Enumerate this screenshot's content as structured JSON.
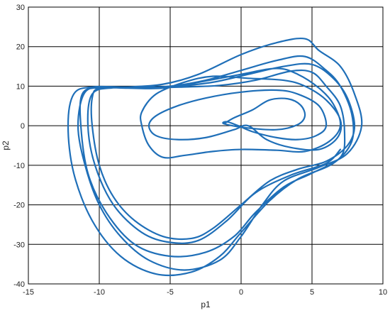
{
  "chart_data": {
    "type": "line",
    "title": "",
    "xlabel": "p1",
    "ylabel": "p2",
    "xlim": [
      -15,
      10
    ],
    "ylim": [
      -40,
      30
    ],
    "xticks": [
      -15,
      -10,
      -5,
      0,
      5,
      10
    ],
    "yticks": [
      -40,
      -30,
      -20,
      -10,
      0,
      10,
      20,
      30
    ],
    "grid": true,
    "line_color": "#1f6fb8",
    "series": [
      {
        "name": "",
        "points": [
          [
            -1.2,
            0.5
          ],
          [
            -0.5,
            2.0
          ],
          [
            0.8,
            4.0
          ],
          [
            2.0,
            6.5
          ],
          [
            3.3,
            6.8
          ],
          [
            4.2,
            5.2
          ],
          [
            4.5,
            2.5
          ],
          [
            4.0,
            0.3
          ],
          [
            2.5,
            -1.0
          ],
          [
            0.3,
            -0.5
          ],
          [
            -1.2,
            0.5
          ],
          [
            -1.0,
            1.0
          ],
          [
            -0.2,
            0.0
          ],
          [
            0.8,
            -1.5
          ],
          [
            2.5,
            -3.0
          ],
          [
            4.0,
            -3.5
          ],
          [
            5.3,
            -2.5
          ],
          [
            6.0,
            0.0
          ],
          [
            5.5,
            5.0
          ],
          [
            4.0,
            8.0
          ],
          [
            2.5,
            9.0
          ],
          [
            0.0,
            8.5
          ],
          [
            -2.5,
            7.0
          ],
          [
            -4.5,
            5.0
          ],
          [
            -6.0,
            2.5
          ],
          [
            -6.5,
            0.0
          ],
          [
            -6.0,
            -2.5
          ],
          [
            -4.5,
            -3.5
          ],
          [
            -2.5,
            -3.0
          ],
          [
            -0.5,
            -1.0
          ],
          [
            0.5,
            0.0
          ],
          [
            1.8,
            -3.5
          ],
          [
            3.5,
            -5.5
          ],
          [
            5.5,
            -6.0
          ],
          [
            6.8,
            -3.0
          ],
          [
            7.0,
            1.5
          ],
          [
            6.0,
            6.5
          ],
          [
            4.5,
            10.0
          ],
          [
            3.0,
            11.5
          ],
          [
            0.5,
            12.0
          ],
          [
            -2.0,
            12.5
          ],
          [
            -4.0,
            11.0
          ],
          [
            -6.0,
            8.0
          ],
          [
            -7.0,
            3.5
          ],
          [
            -7.0,
            0.0
          ],
          [
            -6.5,
            -5.0
          ],
          [
            -5.5,
            -8.0
          ],
          [
            -4.0,
            -7.5
          ],
          [
            -2.0,
            -6.5
          ],
          [
            0.0,
            -6.0
          ],
          [
            2.5,
            -6.2
          ],
          [
            4.5,
            -6.5
          ],
          [
            6.2,
            -4.0
          ],
          [
            7.0,
            0.0
          ],
          [
            6.5,
            5.5
          ],
          [
            5.5,
            9.5
          ],
          [
            4.0,
            13.0
          ],
          [
            2.5,
            14.5
          ],
          [
            0.0,
            13.0
          ],
          [
            -3.0,
            11.0
          ],
          [
            -5.5,
            9.5
          ],
          [
            -8.0,
            9.5
          ],
          [
            -10.0,
            9.5
          ],
          [
            -10.5,
            7.0
          ],
          [
            -10.5,
            0.0
          ],
          [
            -10.0,
            -10.0
          ],
          [
            -9.0,
            -18.0
          ],
          [
            -7.5,
            -24.0
          ],
          [
            -5.5,
            -28.0
          ],
          [
            -3.5,
            -28.5
          ],
          [
            -2.0,
            -26.0
          ],
          [
            0.0,
            -20.0
          ],
          [
            2.0,
            -14.0
          ],
          [
            4.0,
            -11.0
          ],
          [
            6.0,
            -9.0
          ],
          [
            7.5,
            -5.0
          ],
          [
            8.0,
            0.0
          ],
          [
            7.5,
            7.0
          ],
          [
            6.5,
            12.0
          ],
          [
            5.0,
            15.5
          ],
          [
            3.0,
            15.0
          ],
          [
            0.5,
            13.0
          ],
          [
            -2.0,
            11.0
          ],
          [
            -4.5,
            10.0
          ],
          [
            -7.0,
            9.6
          ],
          [
            -9.5,
            9.6
          ],
          [
            -11.0,
            8.5
          ],
          [
            -11.5,
            0.0
          ],
          [
            -11.0,
            -10.0
          ],
          [
            -10.0,
            -20.0
          ],
          [
            -8.5,
            -28.0
          ],
          [
            -6.5,
            -34.0
          ],
          [
            -4.0,
            -36.5
          ],
          [
            -1.5,
            -34.0
          ],
          [
            0.0,
            -28.0
          ],
          [
            1.5,
            -20.0
          ],
          [
            3.0,
            -14.0
          ],
          [
            5.5,
            -10.5
          ],
          [
            7.5,
            -7.0
          ],
          [
            8.5,
            0.0
          ],
          [
            8.0,
            8.0
          ],
          [
            7.0,
            15.0
          ],
          [
            5.5,
            19.0
          ],
          [
            4.5,
            22.0
          ],
          [
            2.5,
            21.0
          ],
          [
            0.0,
            18.0
          ],
          [
            -3.0,
            13.0
          ],
          [
            -5.5,
            10.5
          ],
          [
            -8.0,
            9.8
          ],
          [
            -10.5,
            9.8
          ],
          [
            -11.8,
            8.0
          ],
          [
            -12.2,
            0.0
          ],
          [
            -11.8,
            -12.0
          ],
          [
            -10.5,
            -24.0
          ],
          [
            -8.5,
            -33.0
          ],
          [
            -6.0,
            -37.5
          ],
          [
            -3.5,
            -37.0
          ],
          [
            -1.5,
            -33.0
          ],
          [
            0.0,
            -27.0
          ],
          [
            2.0,
            -19.0
          ],
          [
            4.0,
            -13.5
          ],
          [
            6.5,
            -9.5
          ],
          [
            7.8,
            -4.0
          ],
          [
            7.8,
            3.0
          ],
          [
            7.0,
            10.0
          ],
          [
            6.0,
            14.0
          ],
          [
            4.5,
            17.5
          ],
          [
            2.5,
            16.5
          ],
          [
            0.0,
            14.0
          ],
          [
            -2.5,
            11.5
          ],
          [
            -5.0,
            10.0
          ],
          [
            -7.5,
            9.7
          ],
          [
            -10.0,
            9.7
          ],
          [
            -11.2,
            8.0
          ],
          [
            -11.3,
            0.0
          ],
          [
            -10.8,
            -12.0
          ],
          [
            -9.5,
            -22.0
          ],
          [
            -7.5,
            -30.0
          ],
          [
            -5.0,
            -33.0
          ],
          [
            -2.5,
            -32.0
          ],
          [
            -0.5,
            -28.0
          ],
          [
            1.0,
            -22.0
          ],
          [
            3.0,
            -15.5
          ],
          [
            5.0,
            -12.0
          ],
          [
            7.0,
            -8.0
          ],
          [
            7.3,
            -2.0
          ],
          [
            7.0,
            5.0
          ],
          [
            6.0,
            10.0
          ],
          [
            5.0,
            13.5
          ],
          [
            3.5,
            13.8
          ],
          [
            1.0,
            11.5
          ],
          [
            -1.5,
            10.2
          ],
          [
            -4.0,
            9.8
          ],
          [
            -6.5,
            9.6
          ],
          [
            -9.0,
            9.6
          ],
          [
            -10.5,
            8.0
          ],
          [
            -10.8,
            0.0
          ],
          [
            -10.3,
            -10.0
          ],
          [
            -9.0,
            -20.0
          ],
          [
            -7.0,
            -27.0
          ],
          [
            -5.0,
            -29.5
          ],
          [
            -3.0,
            -29.0
          ],
          [
            -1.0,
            -24.0
          ],
          [
            1.0,
            -17.0
          ],
          [
            3.5,
            -12.5
          ],
          [
            6.0,
            -9.5
          ],
          [
            7.0,
            -6.0
          ]
        ]
      }
    ]
  }
}
